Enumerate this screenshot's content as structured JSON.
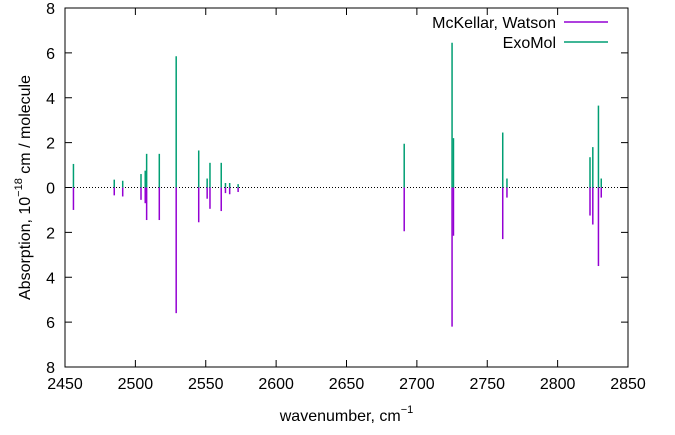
{
  "chart_data": {
    "type": "bar",
    "subtype": "mirrored stick spectrum",
    "xlabel": "wavenumber, cm",
    "xlabel_superscript": "−1",
    "ylabel": "Absorption, 10",
    "ylabel_superscript": "−18",
    "ylabel_unit": " cm / molecule",
    "xlim": [
      2450,
      2850
    ],
    "ylim": [
      -8,
      8
    ],
    "x_ticks": [
      2450,
      2500,
      2550,
      2600,
      2650,
      2700,
      2750,
      2800,
      2850
    ],
    "y_ticks": [
      -8,
      -6,
      -4,
      -2,
      0,
      2,
      4,
      6,
      8
    ],
    "y_tick_labels": [
      "8",
      "6",
      "4",
      "2",
      "0",
      "2",
      "4",
      "6",
      "8"
    ],
    "grid": false,
    "zero_line": true,
    "legend_position": "top-right",
    "series": [
      {
        "name": "McKellar, Watson",
        "color": "#9400d3",
        "direction": "down",
        "x": [
          2456,
          2485,
          2491,
          2504,
          2507,
          2508,
          2517,
          2529,
          2545,
          2551,
          2553,
          2561,
          2564,
          2567,
          2573,
          2691,
          2725,
          2726,
          2761,
          2764,
          2823,
          2825,
          2829,
          2831
        ],
        "values": [
          1.0,
          0.35,
          0.4,
          0.55,
          0.7,
          1.45,
          1.45,
          5.6,
          1.55,
          0.5,
          0.95,
          1.05,
          0.25,
          0.3,
          0.2,
          1.95,
          6.2,
          2.15,
          2.3,
          0.45,
          1.25,
          1.65,
          3.5,
          0.45
        ]
      },
      {
        "name": "ExoMol",
        "color": "#009e73",
        "direction": "up",
        "x": [
          2456,
          2485,
          2491,
          2504,
          2507,
          2508,
          2517,
          2529,
          2545,
          2551,
          2553,
          2561,
          2564,
          2567,
          2573,
          2691,
          2725,
          2726,
          2761,
          2764,
          2823,
          2825,
          2829,
          2831
        ],
        "values": [
          1.05,
          0.35,
          0.3,
          0.6,
          0.75,
          1.5,
          1.5,
          5.85,
          1.65,
          0.4,
          1.1,
          1.1,
          0.2,
          0.2,
          0.15,
          1.95,
          6.45,
          2.2,
          2.45,
          0.4,
          1.35,
          1.8,
          3.65,
          0.4
        ]
      }
    ]
  }
}
